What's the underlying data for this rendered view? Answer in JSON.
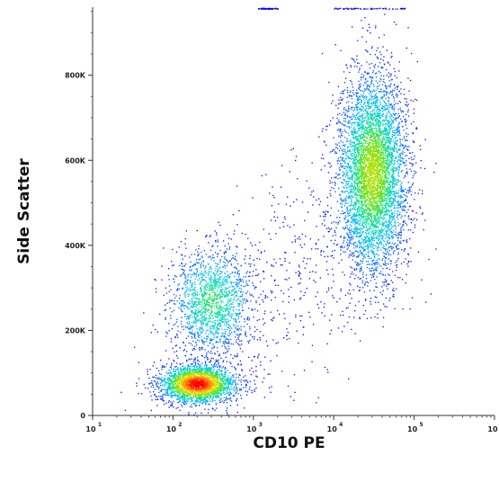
{
  "chart_data": {
    "type": "scatter",
    "subtype": "flow-cytometry density dot plot",
    "xlabel": "CD10 PE",
    "ylabel": "Side Scatter",
    "x_scale": "log",
    "xlim": [
      10,
      1000000
    ],
    "ylim": [
      0,
      960000
    ],
    "x_ticks": [
      {
        "value": 10,
        "base": "10",
        "exp": "1"
      },
      {
        "value": 100,
        "base": "10",
        "exp": "2"
      },
      {
        "value": 1000,
        "base": "10",
        "exp": "3"
      },
      {
        "value": 10000,
        "base": "10",
        "exp": "4"
      },
      {
        "value": 100000,
        "base": "10",
        "exp": "5"
      },
      {
        "value": 1000000,
        "base": "10",
        "exp": "6"
      }
    ],
    "y_ticks": [
      {
        "value": 0,
        "label": "0"
      },
      {
        "value": 200000,
        "label": "200K"
      },
      {
        "value": 400000,
        "label": "400K"
      },
      {
        "value": 600000,
        "label": "600K"
      },
      {
        "value": 800000,
        "label": "800K"
      }
    ],
    "color_scale": [
      "#0000ff",
      "#00b4ff",
      "#00e0a0",
      "#7ce000",
      "#f0e000",
      "#ff8000",
      "#ff0000"
    ],
    "populations": [
      {
        "description": "CD10-negative low side scatter",
        "x_center": 200,
        "y_center": 75000,
        "x_spread_log": 0.23,
        "y_spread": 22000,
        "peak_density": 1.0,
        "count": 2600
      },
      {
        "description": "CD10-negative intermediate side scatter",
        "x_center": 300,
        "y_center": 270000,
        "x_spread_log": 0.25,
        "y_spread": 60000,
        "peak_density": 0.38,
        "count": 1600
      },
      {
        "description": "CD10-positive high side scatter",
        "x_center": 30000,
        "y_center": 570000,
        "x_spread_log": 0.21,
        "y_spread": 115000,
        "peak_density": 0.55,
        "count": 5200
      }
    ]
  }
}
